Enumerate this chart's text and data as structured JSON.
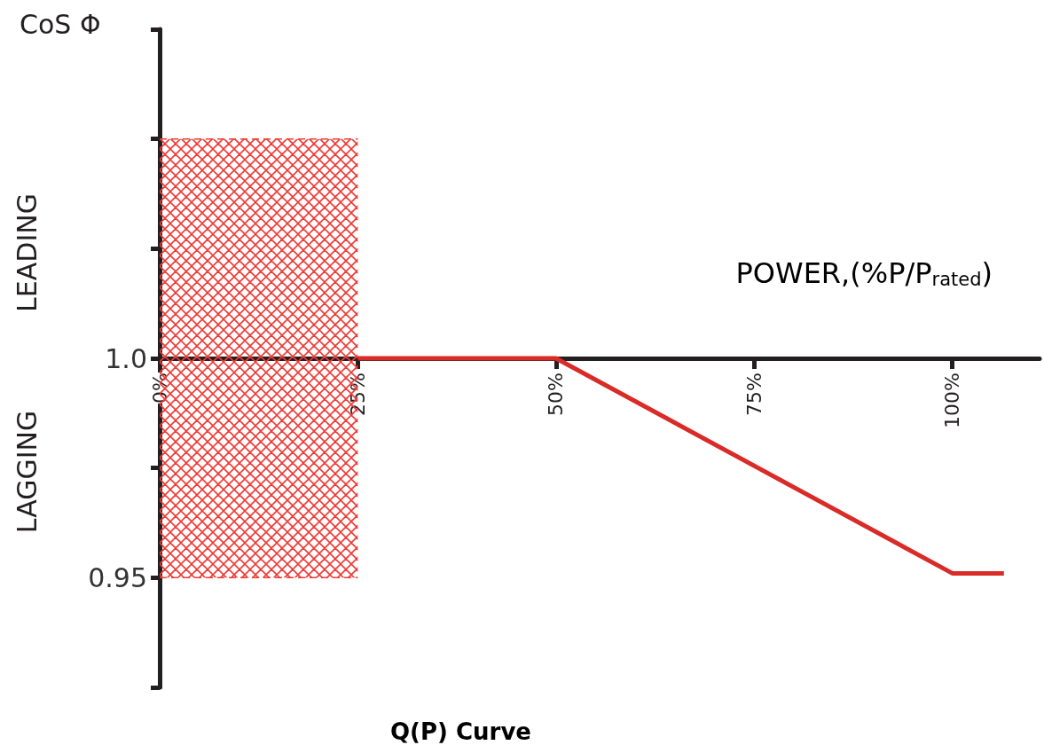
{
  "chart_data": {
    "type": "line",
    "title": "Q(P) Curve",
    "xlabel": "POWER,(%P/P$_{rated}$)",
    "ylabel": "CoS Φ",
    "annotations": [
      "LEADING",
      "LAGGING"
    ],
    "xlim": [
      0,
      111
    ],
    "xticks": [
      {
        "value": 0,
        "label": "0%"
      },
      {
        "value": 25,
        "label": "25%"
      },
      {
        "value": 50,
        "label": "50%"
      },
      {
        "value": 75,
        "label": "75%"
      },
      {
        "value": 100,
        "label": "100%"
      }
    ],
    "ylim": [
      0.925,
      1.075
    ],
    "yticks": [
      {
        "value": 0.925,
        "label": null
      },
      {
        "value": 0.95,
        "label": "0.95"
      },
      {
        "value": 0.975,
        "label": null
      },
      {
        "value": 1,
        "label": "1.0"
      },
      {
        "value": 1.025,
        "label": null
      },
      {
        "value": 1.05,
        "label": null
      },
      {
        "value": 1.075,
        "label": null
      }
    ],
    "series": [
      {
        "type": "area",
        "color": "#ef3b36",
        "line_style": "dashed",
        "x": [
          0,
          25
        ],
        "values": [
          1.05,
          1.05
        ]
      },
      {
        "type": "line",
        "color": "#ef3b36",
        "line_style": "dashed",
        "x": [
          0,
          25
        ],
        "values": [
          0.95,
          0.95
        ]
      },
      {
        "color": "#d92b27",
        "line_style": "solid",
        "x": [
          25,
          50,
          100,
          106.5
        ],
        "values": [
          1,
          1,
          0.951,
          0.951
        ]
      }
    ]
  }
}
